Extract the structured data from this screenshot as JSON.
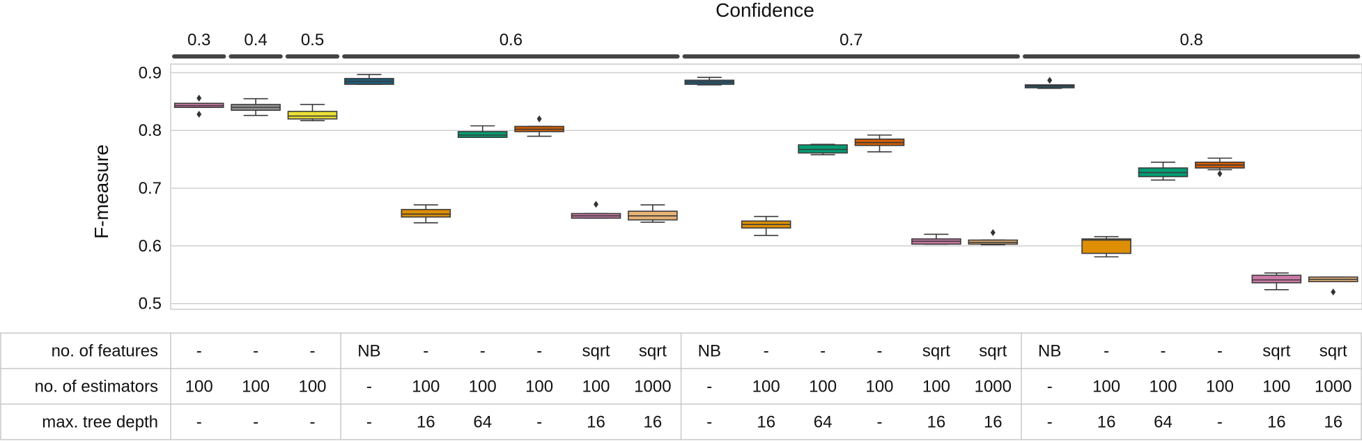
{
  "chart_data": {
    "type": "box",
    "title": "Confidence",
    "ylabel": "F-measure",
    "ylim": [
      0.49,
      0.915
    ],
    "yticks": [
      0.5,
      0.6,
      0.7,
      0.8,
      0.9
    ],
    "ytick_labels": [
      "0.5",
      "0.6",
      "0.7",
      "0.8",
      "0.9"
    ],
    "grid": true,
    "groups": [
      {
        "label": "0.3",
        "start": 0,
        "end": 0
      },
      {
        "label": "0.4",
        "start": 1,
        "end": 1
      },
      {
        "label": "0.5",
        "start": 2,
        "end": 2
      },
      {
        "label": "0.6",
        "start": 3,
        "end": 8
      },
      {
        "label": "0.7",
        "start": 9,
        "end": 14
      },
      {
        "label": "0.8",
        "start": 15,
        "end": 20
      }
    ],
    "boxes": [
      {
        "whislo": 0.84,
        "q1": 0.84,
        "med": 0.843,
        "q3": 0.847,
        "whishi": 0.847,
        "fliers": [
          0.856,
          0.828
        ],
        "color": "#cc79a7"
      },
      {
        "whislo": 0.826,
        "q1": 0.835,
        "med": 0.84,
        "q3": 0.845,
        "whishi": 0.855,
        "fliers": [],
        "color": "#949494"
      },
      {
        "whislo": 0.817,
        "q1": 0.82,
        "med": 0.825,
        "q3": 0.833,
        "whishi": 0.845,
        "fliers": [],
        "color": "#ece133"
      },
      {
        "whislo": 0.88,
        "q1": 0.88,
        "med": 0.885,
        "q3": 0.89,
        "whishi": 0.897,
        "fliers": [],
        "color": "#1b5e80"
      },
      {
        "whislo": 0.64,
        "q1": 0.65,
        "med": 0.655,
        "q3": 0.663,
        "whishi": 0.671,
        "fliers": [],
        "color": "#de8f05"
      },
      {
        "whislo": 0.788,
        "q1": 0.788,
        "med": 0.792,
        "q3": 0.798,
        "whishi": 0.808,
        "fliers": [],
        "color": "#029e73"
      },
      {
        "whislo": 0.79,
        "q1": 0.798,
        "med": 0.802,
        "q3": 0.807,
        "whishi": 0.807,
        "fliers": [
          0.82
        ],
        "color": "#d55e00"
      },
      {
        "whislo": 0.648,
        "q1": 0.648,
        "med": 0.652,
        "q3": 0.656,
        "whishi": 0.656,
        "fliers": [
          0.672
        ],
        "color": "#cc79a7"
      },
      {
        "whislo": 0.641,
        "q1": 0.645,
        "med": 0.652,
        "q3": 0.66,
        "whishi": 0.671,
        "fliers": [],
        "color": "#e7b274"
      },
      {
        "whislo": 0.879,
        "q1": 0.88,
        "med": 0.884,
        "q3": 0.887,
        "whishi": 0.892,
        "fliers": [],
        "color": "#1b5e80"
      },
      {
        "whislo": 0.618,
        "q1": 0.631,
        "med": 0.637,
        "q3": 0.643,
        "whishi": 0.651,
        "fliers": [],
        "color": "#de8f05"
      },
      {
        "whislo": 0.758,
        "q1": 0.761,
        "med": 0.767,
        "q3": 0.775,
        "whishi": 0.776,
        "fliers": [],
        "color": "#029e73"
      },
      {
        "whislo": 0.763,
        "q1": 0.774,
        "med": 0.779,
        "q3": 0.785,
        "whishi": 0.792,
        "fliers": [],
        "color": "#d55e00"
      },
      {
        "whislo": 0.603,
        "q1": 0.603,
        "med": 0.608,
        "q3": 0.612,
        "whishi": 0.62,
        "fliers": [],
        "color": "#cc79a7"
      },
      {
        "whislo": 0.602,
        "q1": 0.603,
        "med": 0.606,
        "q3": 0.61,
        "whishi": 0.61,
        "fliers": [
          0.623
        ],
        "color": "#e7b274"
      },
      {
        "whislo": 0.873,
        "q1": 0.874,
        "med": 0.877,
        "q3": 0.879,
        "whishi": 0.879,
        "fliers": [
          0.887
        ],
        "color": "#1b5e80"
      },
      {
        "whislo": 0.581,
        "q1": 0.587,
        "med": 0.61,
        "q3": 0.612,
        "whishi": 0.616,
        "fliers": [],
        "color": "#de8f05"
      },
      {
        "whislo": 0.714,
        "q1": 0.72,
        "med": 0.727,
        "q3": 0.735,
        "whishi": 0.745,
        "fliers": [],
        "color": "#029e73"
      },
      {
        "whislo": 0.732,
        "q1": 0.735,
        "med": 0.74,
        "q3": 0.745,
        "whishi": 0.752,
        "fliers": [
          0.725
        ],
        "color": "#d55e00"
      },
      {
        "whislo": 0.524,
        "q1": 0.536,
        "med": 0.541,
        "q3": 0.549,
        "whishi": 0.553,
        "fliers": [],
        "color": "#cc79a7"
      },
      {
        "whislo": 0.538,
        "q1": 0.538,
        "med": 0.542,
        "q3": 0.546,
        "whishi": 0.546,
        "fliers": [
          0.52
        ],
        "color": "#e7b274"
      }
    ]
  },
  "table": {
    "rows": [
      {
        "label": "no. of features",
        "cells": [
          "-",
          "-",
          "-",
          "NB",
          "-",
          "-",
          "-",
          "sqrt",
          "sqrt",
          "NB",
          "-",
          "-",
          "-",
          "sqrt",
          "sqrt",
          "NB",
          "-",
          "-",
          "-",
          "sqrt",
          "sqrt"
        ]
      },
      {
        "label": "no. of estimators",
        "cells": [
          "100",
          "100",
          "100",
          "-",
          "100",
          "100",
          "100",
          "100",
          "1000",
          "-",
          "100",
          "100",
          "100",
          "100",
          "1000",
          "-",
          "100",
          "100",
          "100",
          "100",
          "1000"
        ]
      },
      {
        "label": "max. tree depth",
        "cells": [
          "-",
          "-",
          "-",
          "-",
          "16",
          "64",
          "-",
          "16",
          "16",
          "-",
          "16",
          "64",
          "-",
          "16",
          "16",
          "-",
          "16",
          "64",
          "-",
          "16",
          "16"
        ]
      }
    ]
  }
}
